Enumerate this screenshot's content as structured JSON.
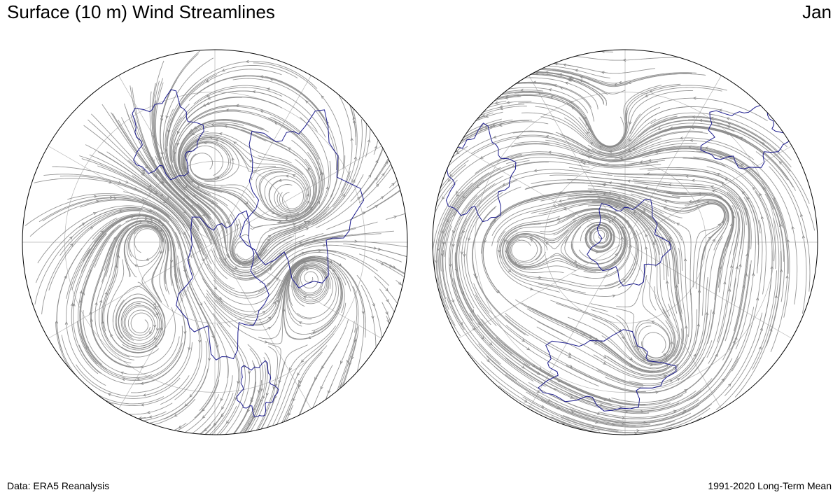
{
  "header": {
    "title": "Surface (10 m) Wind Streamlines",
    "month": "Jan"
  },
  "footer": {
    "source": "Data: ERA5 Reanalysis",
    "period": "1991-2020 Long-Term Mean"
  },
  "colors": {
    "streamline": "#8a8a8a",
    "coastline": "#1a1a8c",
    "border": "#8a8a8a",
    "outline": "#000000",
    "graticule": "#b5b5b5",
    "background": "#ffffff"
  },
  "maps": [
    {
      "hemisphere": "northern",
      "projection": "polar stereographic"
    },
    {
      "hemisphere": "southern",
      "projection": "polar stereographic"
    }
  ]
}
